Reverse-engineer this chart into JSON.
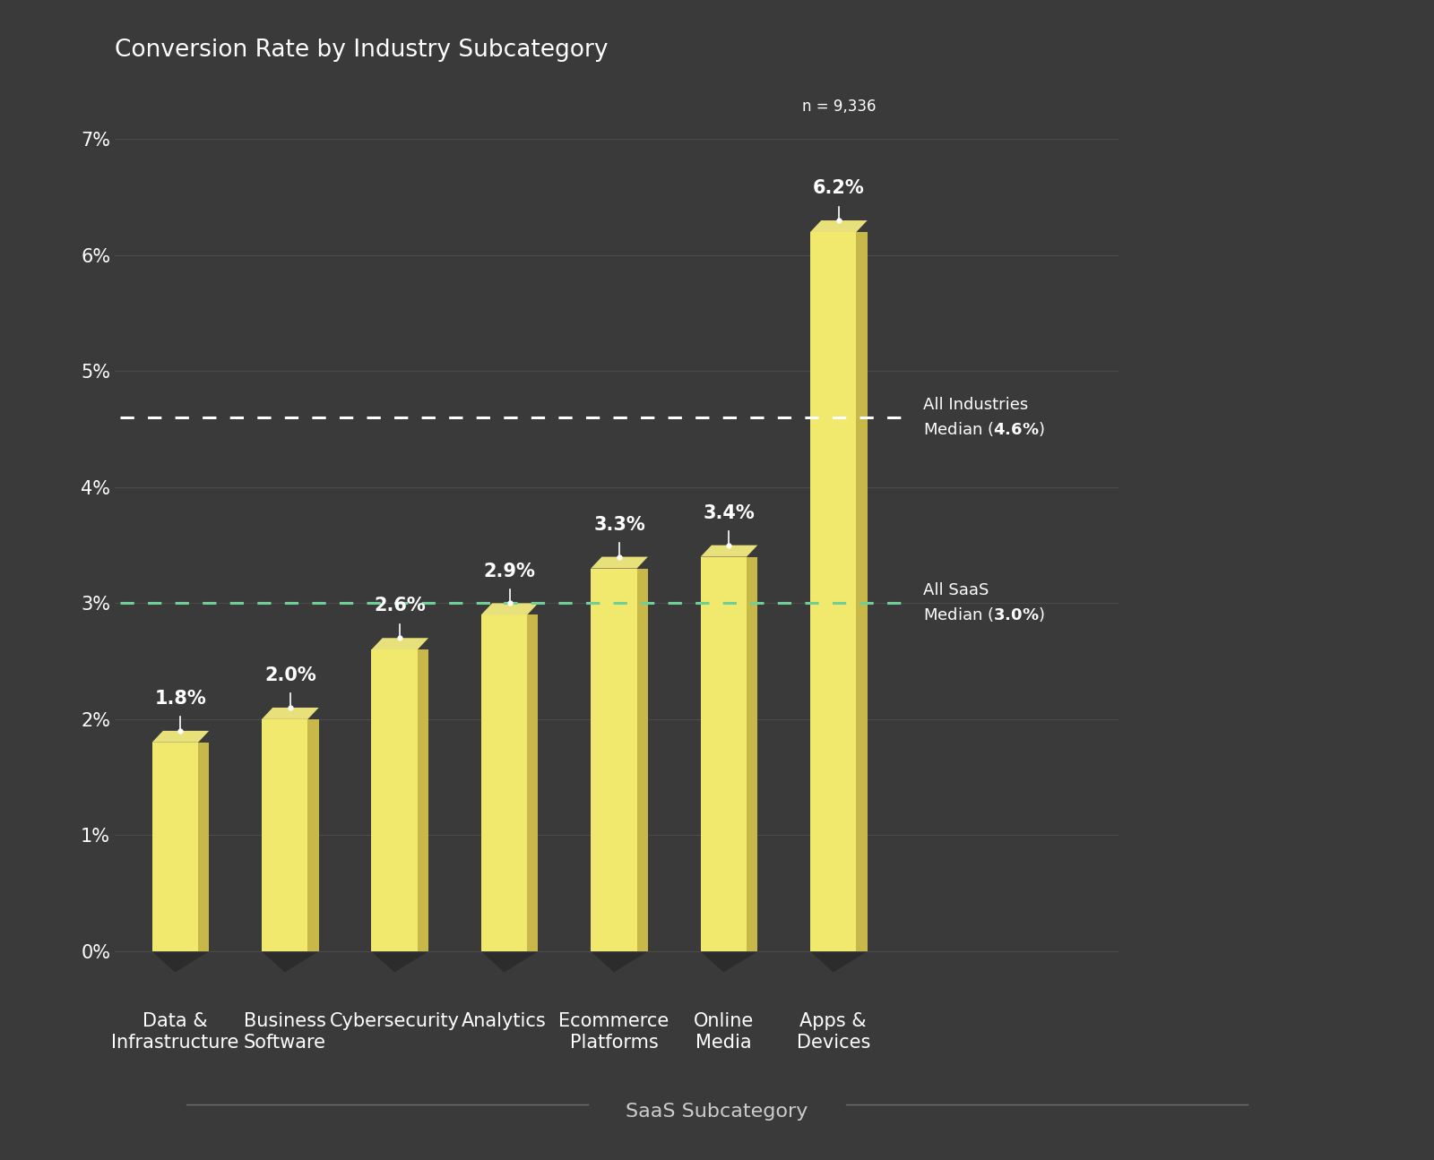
{
  "title": "Conversion Rate by Industry Subcategory",
  "categories": [
    "Data &\nInfrastructure",
    "Business\nSoftware",
    "Cybersecurity",
    "Analytics",
    "Ecommerce\nPlatforms",
    "Online\nMedia",
    "Apps &\nDevices"
  ],
  "values": [
    1.8,
    2.0,
    2.6,
    2.9,
    3.3,
    3.4,
    6.2
  ],
  "value_labels": [
    "1.8%",
    "2.0%",
    "2.6%",
    "2.9%",
    "3.3%",
    "3.4%",
    "6.2%"
  ],
  "n_label": "n = 9,336",
  "bar_face_color": "#f0e96e",
  "bar_right_color": "#c8b84a",
  "bar_top_color": "#e8e07a",
  "bar_bottom_shadow": "#2c2c2c",
  "background_color": "#3a3a3a",
  "text_color": "#ffffff",
  "grid_color": "#505050",
  "median_industries_value": 4.6,
  "median_industries_color": "#ffffff",
  "median_saas_value": 3.0,
  "median_saas_color": "#6fcf97",
  "xlabel": "SaaS Subcategory",
  "xlabel_color": "#cccccc",
  "ylim": [
    0,
    7.5
  ],
  "yticks": [
    0,
    1,
    2,
    3,
    4,
    5,
    6,
    7
  ],
  "ytick_labels": [
    "0%",
    "1%",
    "2%",
    "3%",
    "4%",
    "5%",
    "6%",
    "7%"
  ],
  "title_fontsize": 19,
  "tick_fontsize": 15,
  "annotation_fontsize": 15,
  "median_label_fontsize": 13,
  "n_label_fontsize": 12
}
